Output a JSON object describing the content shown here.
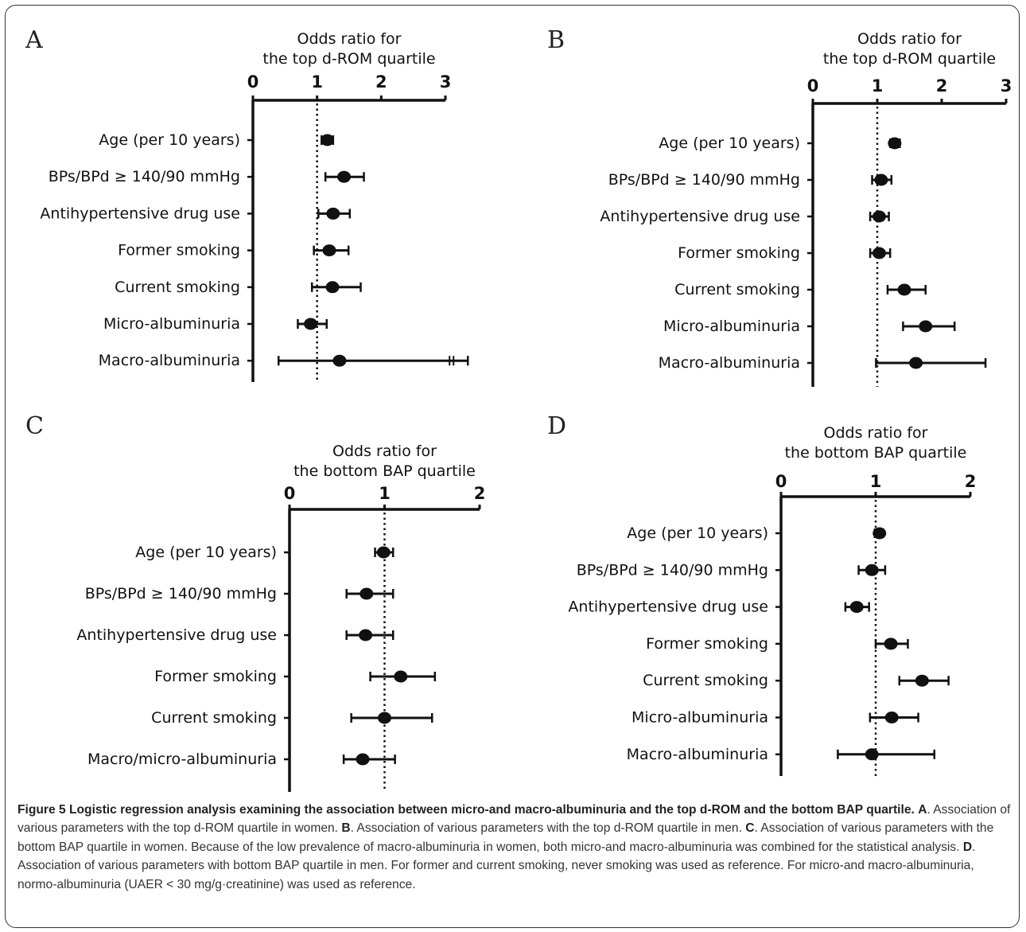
{
  "chart_data": [
    {
      "type": "forest",
      "panel": "A",
      "title": [
        "Odds ratio for",
        "the top d-ROM quartile"
      ],
      "xlim": [
        0,
        3
      ],
      "ticks": [
        0,
        1,
        2,
        3
      ],
      "reference_line": 1,
      "categories": [
        "Age (per 10 years)",
        "BPs/BPd ≥ 140/90 mmHg",
        "Antihypertensive drug use",
        "Former smoking",
        "Current smoking",
        "Micro-albuminuria",
        "Macro-albuminuria"
      ],
      "or": [
        1.16,
        1.42,
        1.25,
        1.19,
        1.24,
        0.9,
        1.35
      ],
      "lower": [
        1.07,
        1.13,
        1.02,
        0.95,
        0.92,
        0.7,
        0.4
      ],
      "upper": [
        1.25,
        1.73,
        1.51,
        1.49,
        1.68,
        1.15,
        3.35
      ],
      "axis_break_on": "Macro-albuminuria"
    },
    {
      "type": "forest",
      "panel": "B",
      "title": [
        "Odds ratio for",
        "the top d-ROM quartile"
      ],
      "xlim": [
        0,
        3
      ],
      "ticks": [
        0,
        1,
        2,
        3
      ],
      "reference_line": 1,
      "categories": [
        "Age (per 10 years)",
        "BPs/BPd ≥ 140/90 mmHg",
        "Antihypertensive drug use",
        "Former smoking",
        "Current smoking",
        "Micro-albuminuria",
        "Macro-albuminuria"
      ],
      "or": [
        1.27,
        1.06,
        1.03,
        1.03,
        1.42,
        1.75,
        1.6
      ],
      "lower": [
        1.2,
        0.92,
        0.89,
        0.89,
        1.16,
        1.4,
        0.98
      ],
      "upper": [
        1.35,
        1.22,
        1.18,
        1.2,
        1.75,
        2.2,
        2.68
      ]
    },
    {
      "type": "forest",
      "panel": "C",
      "title": [
        "Odds ratio for",
        "the bottom BAP quartile"
      ],
      "xlim": [
        0,
        2
      ],
      "ticks": [
        0,
        1,
        2
      ],
      "reference_line": 1,
      "categories": [
        "Age (per 10 years)",
        "BPs/BPd ≥ 140/90 mmHg",
        "Antihypertensive drug use",
        "Former smoking",
        "Current smoking",
        "Macro/micro-albuminuria"
      ],
      "or": [
        0.99,
        0.81,
        0.8,
        1.17,
        1.0,
        0.77
      ],
      "lower": [
        0.9,
        0.6,
        0.6,
        0.85,
        0.65,
        0.57
      ],
      "upper": [
        1.09,
        1.09,
        1.09,
        1.53,
        1.5,
        1.11
      ]
    },
    {
      "type": "forest",
      "panel": "D",
      "title": [
        "Odds ratio for",
        "the bottom BAP quartile"
      ],
      "xlim": [
        0,
        2
      ],
      "ticks": [
        0,
        1,
        2
      ],
      "reference_line": 1,
      "categories": [
        "Age (per 10 years)",
        "BPs/BPd ≥ 140/90 mmHg",
        "Antihypertensive drug use",
        "Former smoking",
        "Current smoking",
        "Micro-albuminuria",
        "Macro-albuminuria"
      ],
      "or": [
        1.04,
        0.96,
        0.8,
        1.16,
        1.49,
        1.17,
        0.96
      ],
      "lower": [
        0.99,
        0.82,
        0.68,
        1.0,
        1.25,
        0.94,
        0.6
      ],
      "upper": [
        1.08,
        1.1,
        0.93,
        1.34,
        1.77,
        1.45,
        1.62
      ]
    }
  ],
  "caption": {
    "title": "Figure 5 Logistic regression analysis examining the association between micro-and macro-albuminuria and the top d-ROM and the bottom BAP quartile.",
    "parts": [
      {
        "label": "A",
        "text": ". Association of various parameters with the top d-ROM quartile in women. "
      },
      {
        "label": "B",
        "text": ". Association of various parameters with the top d-ROM quartile in men. "
      },
      {
        "label": "C",
        "text": ". Association of various parameters with the bottom BAP quartile in women. Because of the low prevalence of macro-albuminuria in women, both micro-and macro-albuminuria was combined for the statistical analysis. "
      },
      {
        "label": "D",
        "text": ". Association of various parameters with bottom BAP quartile in men. For former and current smoking, never smoking was used as reference. For micro-and macro-albuminuria, normo-albuminuria (UAER < 30 mg/g·creatinine) was used as reference."
      }
    ]
  }
}
